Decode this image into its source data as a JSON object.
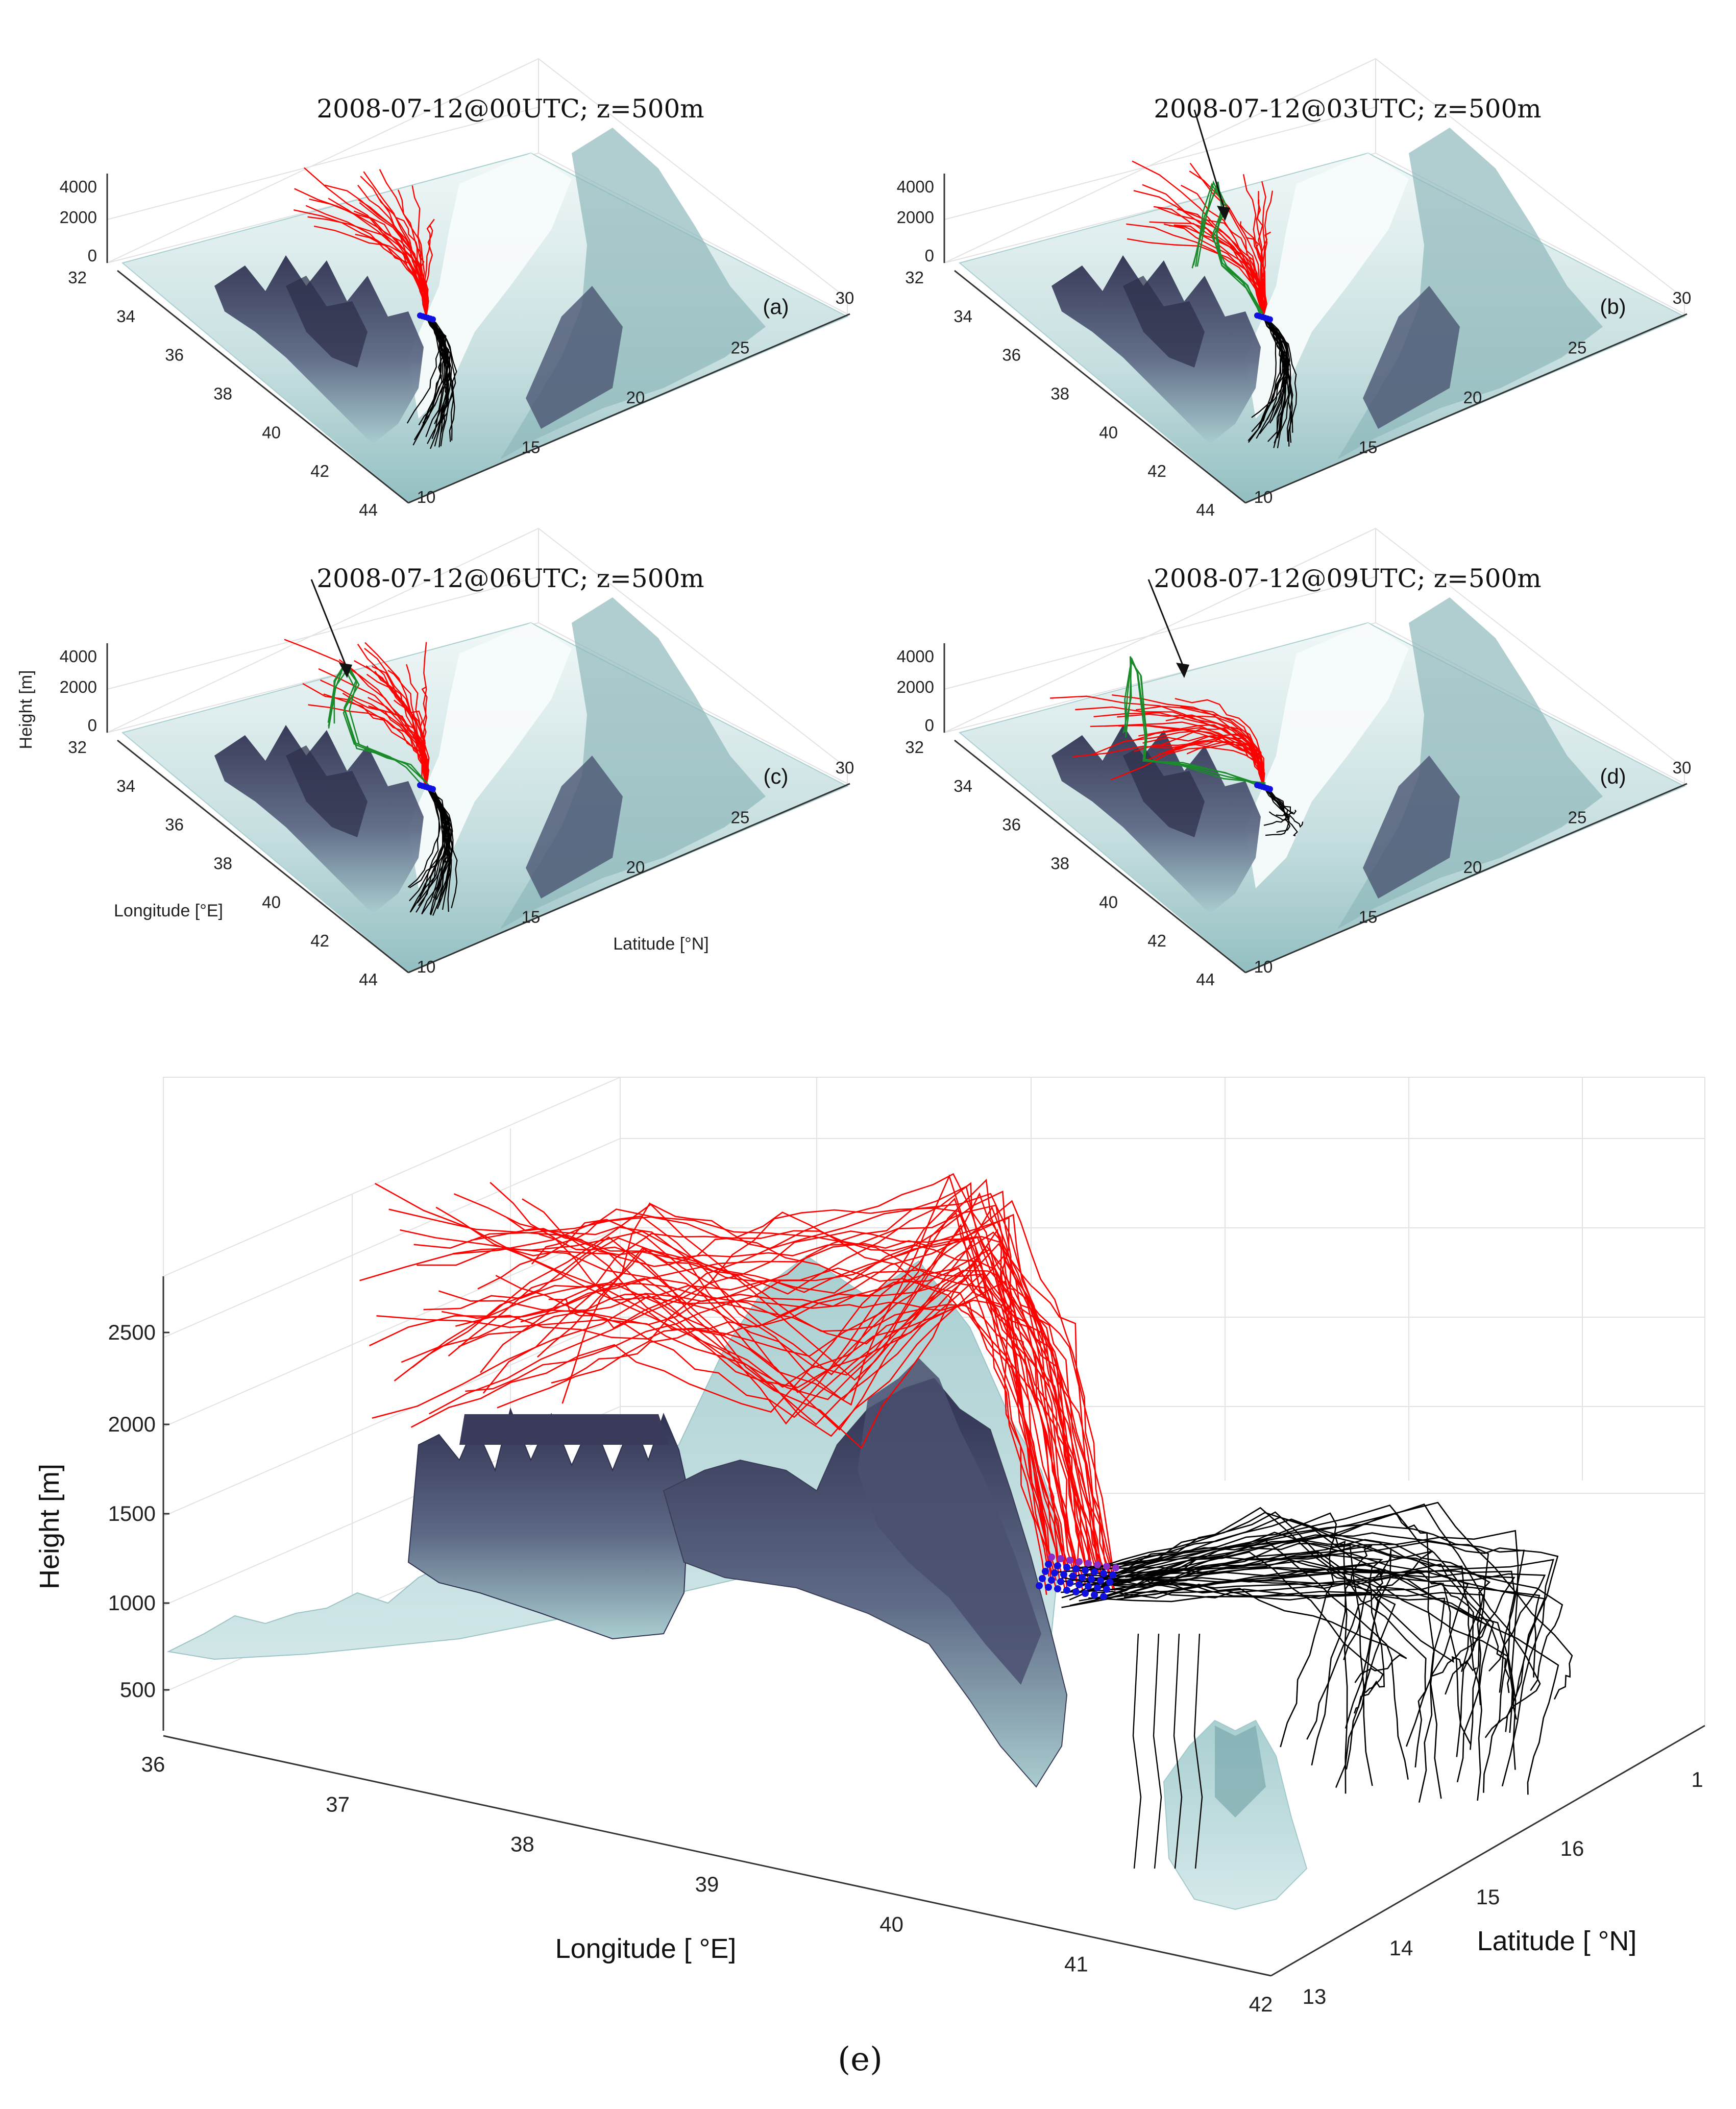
{
  "panels": [
    {
      "id": "a",
      "title": "2008-07-12@00UTC; z=500m",
      "letter": "(a)",
      "green": false,
      "tall_green": false
    },
    {
      "id": "b",
      "title": "2008-07-12@03UTC; z=500m",
      "letter": "(b)",
      "green": true,
      "tall_green": false
    },
    {
      "id": "c",
      "title": "2008-07-12@06UTC; z=500m",
      "letter": "(c)",
      "green": true,
      "tall_green": false
    },
    {
      "id": "d",
      "title": "2008-07-12@09UTC; z=500m",
      "letter": "(d)",
      "green": true,
      "tall_green": true
    }
  ],
  "small_axes": {
    "height_ticks": [
      "4000",
      "2000",
      "0"
    ],
    "longitude_ticks": [
      "32",
      "34",
      "36",
      "38",
      "40",
      "42",
      "44"
    ],
    "latitude_ticks": [
      "10",
      "15",
      "20",
      "25",
      "30"
    ],
    "height_label": "Height [m]",
    "longitude_label": "Longitude [°E]",
    "latitude_label": "Latitude [°N]"
  },
  "large_axes": {
    "height_ticks": [
      "2500",
      "2000",
      "1500",
      "1000",
      "500"
    ],
    "longitude_ticks": [
      "36",
      "37",
      "38",
      "39",
      "40",
      "41",
      "42"
    ],
    "latitude_ticks": [
      "13",
      "14",
      "15",
      "16",
      "1"
    ],
    "height_label": "Height [m]",
    "longitude_label": "Longitude [ °E]",
    "latitude_label": "Latitude [ °N]"
  },
  "caption": "(e)",
  "colors": {
    "backward_trajectory": "#ff0000",
    "forward_trajectory": "#000000",
    "highlighted_trajectory": "#1a8a2a",
    "start_points": "#1010e0",
    "terrain_light": "#eef6f6",
    "terrain_mid": "#8cb8bc",
    "terrain_dark": "#3a3d58"
  }
}
